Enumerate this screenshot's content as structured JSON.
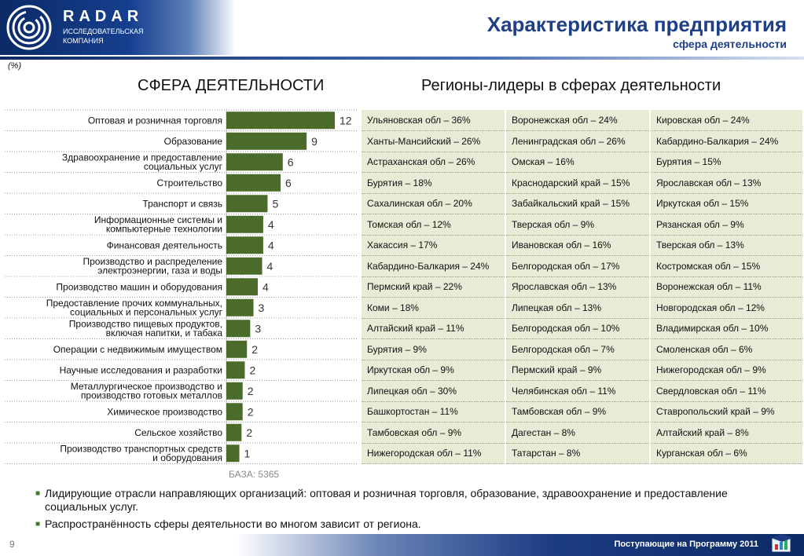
{
  "header": {
    "logo_word": "RADAR",
    "logo_sub_line1": "ИССЛЕДОВАТЕЛЬСКАЯ",
    "logo_sub_line2": "КОМПАНИЯ",
    "title": "Характеристика предприятия",
    "subtitle": "сфера деятельности"
  },
  "unit_label": "(%)",
  "left_heading": "СФЕРА ДЕЯТЕЛЬНОСТИ",
  "right_heading": "Регионы-лидеры в сферах деятельности",
  "colors": {
    "bar": "#4b6b2a",
    "table_bg": "#e6ecd6",
    "brand": "#1f3f86"
  },
  "chart_data": {
    "type": "bar",
    "orientation": "horizontal",
    "categories": [
      [
        "Оптовая и розничная торговля"
      ],
      [
        "Образование"
      ],
      [
        "Здравоохранение и предоставление",
        "социальных услуг"
      ],
      [
        "Строительство"
      ],
      [
        "Транспорт и связь"
      ],
      [
        "Информационные системы и",
        "компьютерные технологии"
      ],
      [
        "Финансовая деятельность"
      ],
      [
        "Производство и распределение",
        "электроэнергии, газа и воды"
      ],
      [
        "Производство машин и оборудования"
      ],
      [
        "Предоставление прочих коммунальных,",
        "социальных и персональных услуг"
      ],
      [
        "Производство пищевых продуктов,",
        "включая напитки, и табака"
      ],
      [
        "Операции с недвижимым имуществом"
      ],
      [
        "Научные исследования и разработки"
      ],
      [
        "Металлургическое производство и",
        "производство готовых  металлов"
      ],
      [
        "Химическое производство"
      ],
      [
        "Сельское хозяйство"
      ],
      [
        "Производство транспортных средств",
        "и оборудования"
      ]
    ],
    "values": [
      12,
      9,
      6,
      6,
      5,
      4,
      4,
      4,
      4,
      3,
      3,
      2,
      2,
      2,
      2,
      2,
      1
    ],
    "bar_fractions": [
      1.0,
      0.74,
      0.52,
      0.5,
      0.38,
      0.34,
      0.34,
      0.33,
      0.29,
      0.25,
      0.22,
      0.19,
      0.17,
      0.15,
      0.15,
      0.14,
      0.12
    ],
    "base_label": "БАЗА: 5365"
  },
  "regions": [
    [
      "Ульяновская обл – 36%",
      "Воронежская обл – 24%",
      "Кировская обл – 24%"
    ],
    [
      "Ханты-Мансийский – 26%",
      "Ленинградская обл – 26%",
      "Кабардино-Балкария – 24%"
    ],
    [
      "Астраханская обл – 26%",
      "Омская – 16%",
      "Бурятия – 15%"
    ],
    [
      "Бурятия – 18%",
      "Краснодарский край – 15%",
      "Ярославская обл – 13%"
    ],
    [
      "Сахалинская обл – 20%",
      "Забайкальский край – 15%",
      "Иркутская обл – 15%"
    ],
    [
      "Томская обл – 12%",
      "Тверская обл – 9%",
      "Рязанская обл – 9%"
    ],
    [
      "Хакассия – 17%",
      "Ивановская обл – 16%",
      "Тверская обл – 13%"
    ],
    [
      "Кабардино-Балкария – 24%",
      "Белгородская обл – 17%",
      "Костромская обл – 15%"
    ],
    [
      "Пермский край – 22%",
      "Ярославская обл – 13%",
      "Воронежская обл – 11%"
    ],
    [
      "Коми – 18%",
      "Липецкая обл – 13%",
      "Новгородская обл – 12%"
    ],
    [
      "Алтайский край – 11%",
      "Белгородская обл – 10%",
      "Владимирская обл – 10%"
    ],
    [
      "Бурятия – 9%",
      "Белгородская обл – 7%",
      "Смоленская обл – 6%"
    ],
    [
      "Иркутская обл – 9%",
      "Пермский край – 9%",
      "Нижегородская обл – 9%"
    ],
    [
      "Липецкая обл – 30%",
      "Челябинская обл – 11%",
      "Свердловская обл – 11%"
    ],
    [
      "Башкортостан – 11%",
      "Тамбовская обл – 9%",
      "Ставропольский край – 9%"
    ],
    [
      "Тамбовская обл – 9%",
      "Дагестан – 8%",
      "Алтайский край – 8%"
    ],
    [
      "Нижегородская обл – 11%",
      "Татарстан – 8%",
      "Курганская обл – 6%"
    ]
  ],
  "notes": [
    "Лидирующие отрасли направляющих организаций: оптовая и розничная торговля, образование, здравоохранение и предоставление социальных услуг.",
    "Распространённость сферы деятельности во многом зависит от региона."
  ],
  "footer": {
    "page_number": "9",
    "program_label": "Поступающие на Программу 2011"
  }
}
